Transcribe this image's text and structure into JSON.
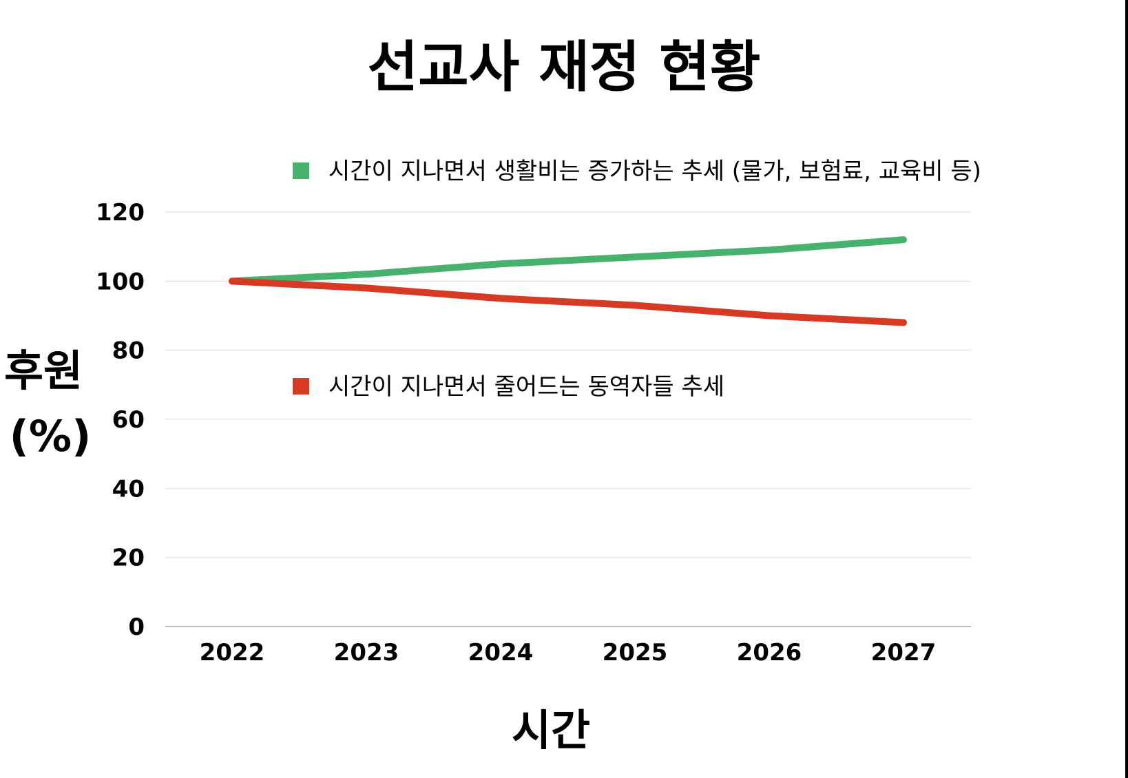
{
  "chart_data": {
    "type": "line",
    "title": "선교사 재정 현황",
    "xlabel": "시간",
    "ylabel_lines": [
      "후원",
      "(%)"
    ],
    "categories": [
      "2022",
      "2023",
      "2024",
      "2025",
      "2026",
      "2027"
    ],
    "ylim": [
      0,
      120
    ],
    "yticks": [
      0,
      20,
      40,
      60,
      80,
      100,
      120
    ],
    "grid": true,
    "series": [
      {
        "name": "시간이 지나면서 생활비는 증가하는 추세 (물가, 보험료, 교육비 등)",
        "values": [
          100,
          102,
          105,
          107,
          109,
          112
        ],
        "color": "#46b26e"
      },
      {
        "name": "시간이 지나면서 줄어드는 동역자들 추세",
        "values": [
          100,
          98,
          95,
          93,
          90,
          88
        ],
        "color": "#d63a22"
      }
    ]
  }
}
